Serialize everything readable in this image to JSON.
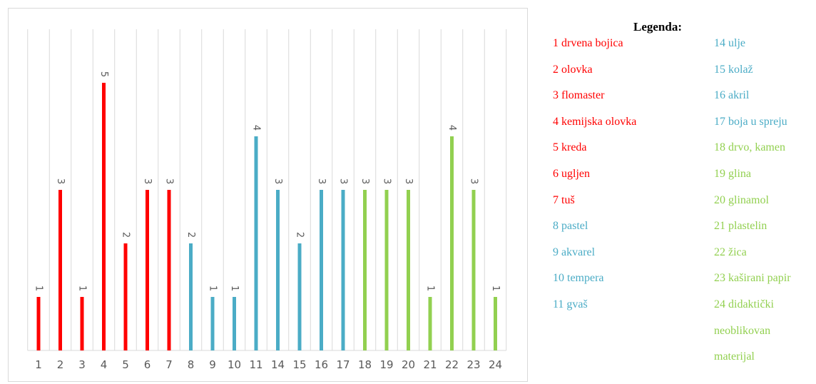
{
  "chart_data": {
    "type": "bar",
    "categories": [
      "1",
      "2",
      "3",
      "4",
      "5",
      "6",
      "7",
      "8",
      "9",
      "10",
      "11",
      "14",
      "15",
      "16",
      "17",
      "18",
      "19",
      "20",
      "21",
      "22",
      "23",
      "24"
    ],
    "values": [
      1,
      3,
      1,
      5,
      2,
      3,
      3,
      2,
      1,
      1,
      4,
      3,
      2,
      3,
      3,
      3,
      3,
      3,
      1,
      4,
      3,
      1
    ],
    "bar_groups": [
      "red",
      "red",
      "red",
      "red",
      "red",
      "red",
      "red",
      "blue",
      "blue",
      "blue",
      "blue",
      "blue",
      "blue",
      "blue",
      "blue",
      "green",
      "green",
      "green",
      "green",
      "green",
      "green",
      "green"
    ],
    "ylim": [
      0,
      6
    ],
    "grid": "vertical",
    "title": "",
    "xlabel": "",
    "ylabel": ""
  },
  "colors": {
    "red": "#ff0000",
    "blue": "#4bacc6",
    "green": "#92d050",
    "grid": "#d9d9d9",
    "axis_text": "#595959"
  },
  "legend": {
    "title": "Legenda:",
    "left_column": [
      {
        "text": "1 drvena bojica",
        "group": "red"
      },
      {
        "text": "2 olovka",
        "group": "red"
      },
      {
        "text": "3 flomaster",
        "group": "red"
      },
      {
        "text": "4 kemijska olovka",
        "group": "red"
      },
      {
        "text": "5 kreda",
        "group": "red"
      },
      {
        "text": "6 ugljen",
        "group": "red"
      },
      {
        "text": "7 tuš",
        "group": "red"
      },
      {
        "text": "8 pastel",
        "group": "blue"
      },
      {
        "text": "9 akvarel",
        "group": "blue"
      },
      {
        "text": "10 tempera",
        "group": "blue"
      },
      {
        "text": "11 gvaš",
        "group": "blue"
      }
    ],
    "right_column": [
      {
        "text": "14 ulje",
        "group": "blue"
      },
      {
        "text": "15 kolaž",
        "group": "blue"
      },
      {
        "text": "16 akril",
        "group": "blue"
      },
      {
        "text": "17 boja u spreju",
        "group": "blue"
      },
      {
        "text": "18 drvo, kamen",
        "group": "green"
      },
      {
        "text": "19 glina",
        "group": "green"
      },
      {
        "text": "20 glinamol",
        "group": "green"
      },
      {
        "text": "21 plastelin",
        "group": "green"
      },
      {
        "text": "22 žica",
        "group": "green"
      },
      {
        "text": "23 kaširani papir",
        "group": "green"
      },
      {
        "text": "24 didaktički",
        "group": "green"
      },
      {
        "text": "neoblikovan",
        "group": "green"
      },
      {
        "text": "materijal",
        "group": "green"
      }
    ]
  }
}
